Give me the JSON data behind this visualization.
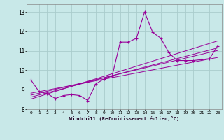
{
  "x_values": [
    0,
    1,
    2,
    3,
    4,
    5,
    6,
    7,
    8,
    9,
    10,
    11,
    12,
    13,
    14,
    15,
    16,
    17,
    18,
    19,
    20,
    21,
    22,
    23
  ],
  "main_line": [
    9.5,
    8.9,
    8.8,
    8.55,
    8.7,
    8.75,
    8.7,
    8.45,
    9.3,
    9.55,
    9.7,
    11.45,
    11.45,
    11.65,
    13.0,
    11.95,
    11.65,
    10.9,
    10.5,
    10.5,
    10.5,
    10.55,
    10.6,
    11.25
  ],
  "trend_line1": [
    8.72,
    8.82,
    8.92,
    9.02,
    9.12,
    9.22,
    9.32,
    9.42,
    9.52,
    9.62,
    9.72,
    9.82,
    9.92,
    10.02,
    10.12,
    10.22,
    10.32,
    10.42,
    10.52,
    10.62,
    10.72,
    10.82,
    10.92,
    11.02
  ],
  "trend_line2": [
    8.82,
    8.9,
    8.98,
    9.06,
    9.14,
    9.22,
    9.3,
    9.38,
    9.46,
    9.54,
    9.62,
    9.7,
    9.78,
    9.86,
    9.94,
    10.02,
    10.1,
    10.18,
    10.26,
    10.34,
    10.42,
    10.5,
    10.58,
    10.66
  ],
  "trend_line3": [
    8.62,
    8.73,
    8.84,
    8.95,
    9.06,
    9.17,
    9.28,
    9.39,
    9.5,
    9.61,
    9.72,
    9.83,
    9.94,
    10.05,
    10.16,
    10.27,
    10.38,
    10.49,
    10.6,
    10.71,
    10.82,
    10.93,
    11.04,
    11.15
  ],
  "trend_line4": [
    8.52,
    8.65,
    8.78,
    8.91,
    9.04,
    9.17,
    9.3,
    9.43,
    9.56,
    9.69,
    9.82,
    9.95,
    10.08,
    10.21,
    10.34,
    10.47,
    10.6,
    10.73,
    10.86,
    10.99,
    11.12,
    11.25,
    11.38,
    11.51
  ],
  "line_color": "#990099",
  "bg_color": "#c8e8e8",
  "grid_color": "#aacccc",
  "xlabel": "Windchill (Refroidissement éolien,°C)",
  "ylim": [
    8.0,
    13.4
  ],
  "xlim": [
    -0.5,
    23.5
  ],
  "yticks": [
    8,
    9,
    10,
    11,
    12,
    13
  ],
  "xticks": [
    0,
    1,
    2,
    3,
    4,
    5,
    6,
    7,
    8,
    9,
    10,
    11,
    12,
    13,
    14,
    15,
    16,
    17,
    18,
    19,
    20,
    21,
    22,
    23
  ]
}
